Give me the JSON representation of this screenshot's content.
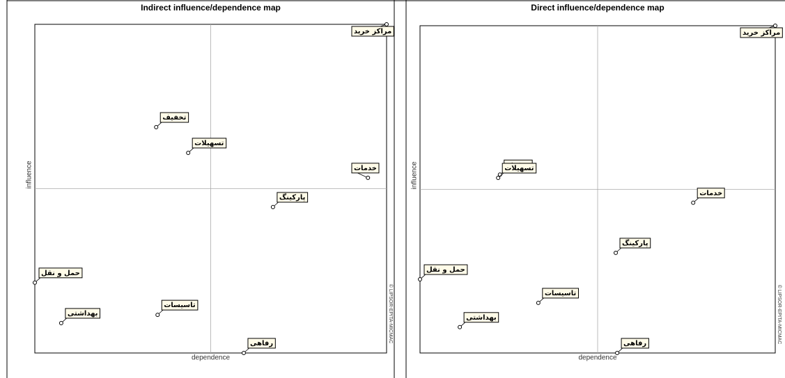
{
  "chart_data": [
    {
      "type": "scatter",
      "title": "Indirect influence/dependence map",
      "xlabel": "dependence",
      "ylabel": "influence",
      "credit": "© LIPSOR-EPITA-MICMAC",
      "xlim": [
        0,
        100
      ],
      "ylim": [
        0,
        100
      ],
      "xref": 50,
      "yref": 50,
      "labels": [
        "مراکز خرید",
        "تخفیف",
        "تسهیلات",
        "خدمات",
        "پارکینگ",
        "حمل و نقل",
        "بهداشتی",
        "تاسیسات",
        "رفاهی"
      ],
      "x": [
        100,
        34.5,
        43.6,
        94.7,
        67.7,
        0,
        7.5,
        34.9,
        59.4
      ],
      "values": [
        100,
        68.7,
        60.9,
        53.3,
        44.4,
        21.4,
        9.1,
        11.6,
        0
      ]
    },
    {
      "type": "scatter",
      "title": "Direct influence/dependence map",
      "xlabel": "dependence",
      "ylabel": "influence",
      "credit": "© LIPSOR-EPITA-MICMAC",
      "xlim": [
        0,
        100
      ],
      "ylim": [
        0,
        100
      ],
      "xref": 50,
      "yref": 50,
      "labels": [
        "مراکز خرید",
        "تخفیف",
        "تسهیلات",
        "خدمات",
        "پارکینگ",
        "حمل و نقل",
        "بهداشتی",
        "تاسیسات",
        "رفاهی"
      ],
      "x": [
        100,
        22.5,
        22,
        76.9,
        55.1,
        0,
        11.2,
        33.3,
        55.5
      ],
      "values": [
        100,
        54.5,
        53.5,
        45.9,
        30.6,
        22.5,
        7.9,
        15.3,
        0
      ]
    }
  ]
}
